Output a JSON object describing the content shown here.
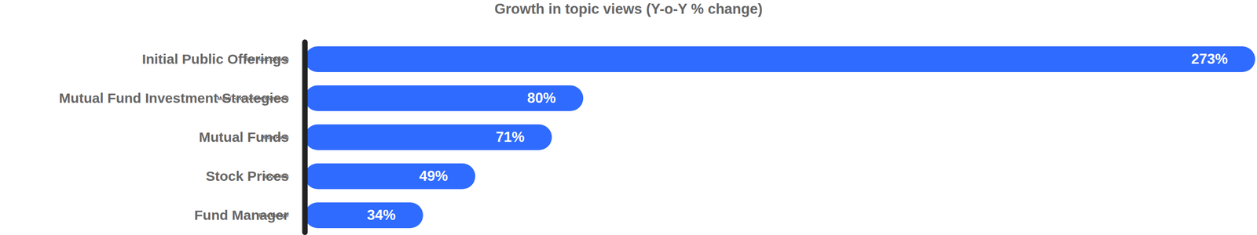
{
  "chart_data": {
    "type": "bar",
    "orientation": "horizontal",
    "title": "Growth in topic views (Y-o-Y % change)",
    "categories": [
      "Initial Public Offerings",
      "Mutual Fund Investment Strategies",
      "Mutual Funds",
      "Stock Prices",
      "Fund Manager"
    ],
    "values": [
      273,
      80,
      71,
      49,
      34
    ],
    "value_labels": [
      "273%",
      "80%",
      "71%",
      "49%",
      "34%"
    ],
    "color": "#2f6bff",
    "xlim": [
      0,
      273
    ],
    "data_labels": true,
    "tick_labels": "y",
    "grid": false
  }
}
